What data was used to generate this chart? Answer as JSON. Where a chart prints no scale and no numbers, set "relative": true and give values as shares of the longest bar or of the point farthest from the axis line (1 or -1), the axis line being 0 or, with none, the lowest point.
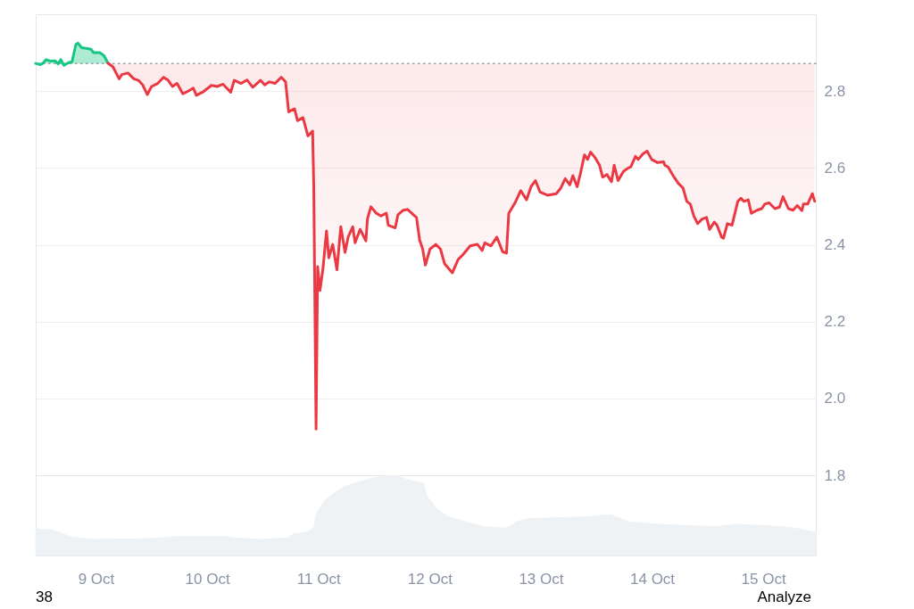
{
  "chart_data": [
    {
      "type": "area",
      "xlim": [
        "--10-08T11:00",
        "--10-15T11:20"
      ],
      "ylim": [
        1.8,
        3.0
      ],
      "yticks": [
        1.8,
        {
          "value": 2,
          "label": "2.0"
        },
        2.2,
        2.4,
        2.6,
        2.8
      ],
      "grid": "y",
      "tick_labels": "y",
      "ref_lines": [
        {
          "axis": "y",
          "value": 2.872,
          "line_style": "dotted",
          "color": "#9aa0aa"
        }
      ],
      "series": [
        {
          "color": "#16c784",
          "x": [
            "--10-08T11:00",
            "--10-08T12:00",
            "--10-08T12:30",
            "--10-08T13:15",
            "--10-08T14:15",
            "--10-08T15:10",
            "--10-08T15:50",
            "--10-08T16:25",
            "--10-08T17:05",
            "--10-08T18:05",
            "--10-08T18:50",
            "--10-08T19:40",
            "--10-08T20:05",
            "--10-08T20:55",
            "--10-08T21:55",
            "--10-08T22:55",
            "--10-08T23:30",
            "--10-09T00:50",
            "--10-09T01:45",
            "--10-09T02:35"
          ],
          "values": [
            2.872,
            2.869,
            2.872,
            2.882,
            2.878,
            2.879,
            2.871,
            2.882,
            2.867,
            2.874,
            2.876,
            2.921,
            2.925,
            2.913,
            2.911,
            2.909,
            2.9,
            2.9,
            2.892,
            2.873
          ]
        },
        {
          "type": "line",
          "color": "#ea3943",
          "x": [
            "--10-09T02:35",
            "--10-09T03:40",
            "--10-09T05:00",
            "--10-09T05:35",
            "--10-09T06:55",
            "--10-09T08:10",
            "--10-09T09:10",
            "--10-09T10:05",
            "--10-09T11:05",
            "--10-09T12:00",
            "--10-09T13:20",
            "--10-09T14:35",
            "--10-09T15:35",
            "--10-09T16:30",
            "--10-09T17:30",
            "--10-09T18:45",
            "--10-09T20:05",
            "--10-09T21:00",
            "--10-09T21:40",
            "--10-09T23:00",
            "--10-10T00:55",
            "--10-10T02:10",
            "--10-10T03:25",
            "--10-10T05:05",
            "--10-10T05:50",
            "--10-10T07:20",
            "--10-10T08:35",
            "--10-10T09:50",
            "--10-10T11:30",
            "--10-10T12:25",
            "--10-10T13:25",
            "--10-10T14:40",
            "--10-10T16:00",
            "--10-10T16:55",
            "--10-10T17:35",
            "--10-10T18:50",
            "--10-10T19:30",
            "--10-10T20:40",
            "--10-10T21:45",
            "--10-10T22:45",
            "--10-10T23:00",
            "--10-10T23:30",
            "--10-10T23:50",
            "--10-11T00:20",
            "--10-11T01:00",
            "--10-11T01:45",
            "--10-11T02:15",
            "--10-11T03:05",
            "--10-11T04:00",
            "--10-11T04:50",
            "--10-11T05:45",
            "--10-11T06:25",
            "--10-11T07:25",
            "--10-11T07:55",
            "--10-11T09:00",
            "--10-11T10:15",
            "--10-11T10:35",
            "--10-11T11:20",
            "--10-11T12:30",
            "--10-11T13:30",
            "--10-11T14:40",
            "--10-11T15:05",
            "--10-11T16:35",
            "--10-11T17:10",
            "--10-11T18:20",
            "--10-11T19:15",
            "--10-11T20:30",
            "--10-11T21:10",
            "--10-11T21:50",
            "--10-11T22:30",
            "--10-11T23:05",
            "--10-12T00:05",
            "--10-12T01:20",
            "--10-12T02:20",
            "--10-12T03:15",
            "--10-12T04:55",
            "--10-12T06:10",
            "--10-12T07:10",
            "--10-12T08:45",
            "--10-12T10:20",
            "--10-12T11:20",
            "--10-12T11:55",
            "--10-12T13:15",
            "--10-12T14:30",
            "--10-12T15:45",
            "--10-12T16:35",
            "--10-12T17:05",
            "--10-12T18:25",
            "--10-12T19:40",
            "--10-12T20:55",
            "--10-12T21:55",
            "--10-12T22:50",
            "--10-12T23:50",
            "--10-13T01:25",
            "--10-13T03:20",
            "--10-13T04:20",
            "--10-13T05:15",
            "--10-13T06:15",
            "--10-13T06:55",
            "--10-13T07:50",
            "--10-13T08:30",
            "--10-13T09:25",
            "--10-13T10:05",
            "--10-13T10:45",
            "--10-13T11:45",
            "--10-13T12:40",
            "--10-13T13:20",
            "--10-13T14:15",
            "--10-13T15:15",
            "--10-13T15:50",
            "--10-13T16:40",
            "--10-13T17:50",
            "--10-13T18:45",
            "--10-13T19:25",
            "--10-13T20:25",
            "--10-13T21:00",
            "--10-13T22:00",
            "--10-13T22:55",
            "--10-13T23:55",
            "--10-14T01:10",
            "--10-14T02:30",
            "--10-14T02:45",
            "--10-14T03:25",
            "--10-14T04:45",
            "--10-14T05:40",
            "--10-14T06:40",
            "--10-14T07:30",
            "--10-14T08:15",
            "--10-14T09:00",
            "--10-14T09:50",
            "--10-14T10:50",
            "--10-14T11:45",
            "--10-14T12:25",
            "--10-14T13:25",
            "--10-14T14:00",
            "--10-14T15:00",
            "--10-14T15:25",
            "--10-14T16:15",
            "--10-14T17:15",
            "--10-14T18:30",
            "--10-14T19:10",
            "--10-14T19:50",
            "--10-14T20:45",
            "--10-14T21:25",
            "--10-14T22:40",
            "--10-14T23:40",
            "--10-15T00:20",
            "--10-15T01:15",
            "--10-15T02:30",
            "--10-15T03:30",
            "--10-15T04:15",
            "--10-15T05:25",
            "--10-15T06:25",
            "--10-15T07:20",
            "--10-15T08:20",
            "--10-15T08:40",
            "--10-15T09:35",
            "--10-15T10:35",
            "--10-15T11:05"
          ],
          "values": [
            2.873,
            2.863,
            2.832,
            2.843,
            2.847,
            2.832,
            2.828,
            2.816,
            2.791,
            2.812,
            2.82,
            2.836,
            2.828,
            2.812,
            2.82,
            2.793,
            2.801,
            2.808,
            2.789,
            2.797,
            2.815,
            2.812,
            2.818,
            2.797,
            2.828,
            2.82,
            2.829,
            2.81,
            2.828,
            2.816,
            2.824,
            2.82,
            2.836,
            2.824,
            2.746,
            2.754,
            2.723,
            2.731,
            2.683,
            2.696,
            2.552,
            1.92,
            2.343,
            2.281,
            2.339,
            2.436,
            2.366,
            2.401,
            2.335,
            2.447,
            2.38,
            2.42,
            2.447,
            2.405,
            2.44,
            2.41,
            2.467,
            2.499,
            2.482,
            2.475,
            2.482,
            2.451,
            2.444,
            2.478,
            2.49,
            2.492,
            2.478,
            2.471,
            2.413,
            2.389,
            2.347,
            2.389,
            2.401,
            2.389,
            2.35,
            2.327,
            2.362,
            2.374,
            2.397,
            2.401,
            2.385,
            2.405,
            2.397,
            2.42,
            2.382,
            2.378,
            2.482,
            2.509,
            2.541,
            2.517,
            2.552,
            2.567,
            2.537,
            2.529,
            2.533,
            2.548,
            2.572,
            2.556,
            2.58,
            2.551,
            2.583,
            2.634,
            2.622,
            2.641,
            2.626,
            2.607,
            2.576,
            2.583,
            2.564,
            2.607,
            2.567,
            2.591,
            2.599,
            2.603,
            2.63,
            2.622,
            2.636,
            2.644,
            2.622,
            2.614,
            2.616,
            2.607,
            2.603,
            2.576,
            2.56,
            2.548,
            2.513,
            2.506,
            2.475,
            2.455,
            2.467,
            2.471,
            2.44,
            2.459,
            2.451,
            2.42,
            2.417,
            2.455,
            2.451,
            2.513,
            2.521,
            2.513,
            2.517,
            2.482,
            2.49,
            2.494,
            2.506,
            2.509,
            2.494,
            2.498,
            2.525,
            2.494,
            2.49,
            2.502,
            2.489,
            2.506,
            2.506,
            2.533,
            2.513
          ],
          "lower": [
            2.873,
            2.863,
            2.832,
            2.843,
            2.847,
            2.832,
            2.828,
            2.816,
            2.791,
            2.812,
            2.82,
            2.836,
            2.828,
            2.812,
            2.82,
            2.793,
            2.801,
            2.808,
            2.789,
            2.797,
            2.815,
            2.812,
            2.818,
            2.797,
            2.828,
            2.82,
            2.829,
            2.81,
            2.828,
            2.816,
            2.824,
            2.82,
            2.836,
            2.824,
            2.746,
            2.754,
            2.723,
            2.731,
            2.683,
            2.696,
            2.552,
            1.92,
            2.343,
            2.281,
            2.339,
            2.436,
            2.366,
            2.401,
            2.335,
            2.447,
            2.38,
            2.42,
            2.447,
            2.405,
            2.44,
            2.41,
            2.467,
            2.499,
            2.482,
            2.475,
            2.482,
            2.451,
            2.444,
            2.478,
            2.49,
            2.492,
            2.478,
            2.471,
            2.413,
            2.389,
            2.347,
            2.389,
            2.401,
            2.389,
            2.35,
            2.327,
            2.362,
            2.374,
            2.397,
            2.401,
            2.385,
            2.405,
            2.397,
            2.42,
            2.382,
            2.378,
            2.482,
            2.509,
            2.541,
            2.517,
            2.552,
            2.567,
            2.537,
            2.529,
            2.533,
            2.548,
            2.572,
            2.556,
            2.58,
            2.551,
            2.583,
            2.634,
            2.622,
            2.641,
            2.626,
            2.607,
            2.576,
            2.583,
            2.564,
            2.607,
            2.567,
            2.591,
            2.599,
            2.603,
            2.63,
            2.622,
            2.636,
            2.644,
            2.622,
            2.614,
            2.616,
            2.607,
            2.603,
            2.576,
            2.56,
            2.548,
            2.513,
            2.506,
            2.475,
            2.455,
            2.467,
            2.471,
            2.44,
            2.459,
            2.451,
            2.42,
            2.417,
            2.455,
            2.451,
            2.513,
            2.521,
            2.513,
            2.517,
            2.482,
            2.49,
            2.494,
            2.506,
            2.509,
            2.494,
            2.498,
            2.525,
            2.494,
            2.49,
            2.502,
            2.489,
            2.506,
            2.506,
            2.533,
            2.513
          ],
          "upper": [
            2.872,
            2.872,
            2.872,
            2.872,
            2.872,
            2.872,
            2.872,
            2.872,
            2.872,
            2.872,
            2.872,
            2.872,
            2.872,
            2.872,
            2.872,
            2.872,
            2.872,
            2.872,
            2.872,
            2.872,
            2.872,
            2.872,
            2.872,
            2.872,
            2.872,
            2.872,
            2.872,
            2.872,
            2.872,
            2.872,
            2.872,
            2.872,
            2.872,
            2.872,
            2.872,
            2.872,
            2.872,
            2.872,
            2.872,
            2.872,
            2.872,
            2.872,
            2.872,
            2.872,
            2.872,
            2.872,
            2.872,
            2.872,
            2.872,
            2.872,
            2.872,
            2.872,
            2.872,
            2.872,
            2.872,
            2.872,
            2.872,
            2.872,
            2.872,
            2.872,
            2.872,
            2.872,
            2.872,
            2.872,
            2.872,
            2.872,
            2.872,
            2.872,
            2.872,
            2.872,
            2.872,
            2.872,
            2.872,
            2.872,
            2.872,
            2.872,
            2.872,
            2.872,
            2.872,
            2.872,
            2.872,
            2.872,
            2.872,
            2.872,
            2.872,
            2.872,
            2.872,
            2.872,
            2.872,
            2.872,
            2.872,
            2.872,
            2.872,
            2.872,
            2.872,
            2.872,
            2.872,
            2.872,
            2.872,
            2.872,
            2.872,
            2.872,
            2.872,
            2.872,
            2.872,
            2.872,
            2.872,
            2.872,
            2.872,
            2.872,
            2.872,
            2.872,
            2.872,
            2.872,
            2.872,
            2.872,
            2.872,
            2.872,
            2.872,
            2.872,
            2.872,
            2.872,
            2.872,
            2.872,
            2.872,
            2.872,
            2.872,
            2.872,
            2.872,
            2.872,
            2.872,
            2.872,
            2.872,
            2.872,
            2.872,
            2.872,
            2.872,
            2.872,
            2.872,
            2.872,
            2.872,
            2.872,
            2.872,
            2.872,
            2.872,
            2.872,
            2.872,
            2.872,
            2.872,
            2.872,
            2.872,
            2.872,
            2.872,
            2.872,
            2.872,
            2.872,
            2.872,
            2.872,
            2.872
          ]
        }
      ]
    },
    {
      "type": "area",
      "relative": true,
      "xlim": [
        "--10-08T11:00",
        "--10-15T11:20"
      ],
      "xticks": [
        {
          "value": "--10-09",
          "label": "9 Oct"
        },
        {
          "value": "--10-10",
          "label": "10 Oct"
        },
        {
          "value": "--10-11",
          "label": "11 Oct"
        },
        {
          "value": "--10-12",
          "label": "12 Oct"
        },
        {
          "value": "--10-13",
          "label": "13 Oct"
        },
        {
          "value": "--10-14",
          "label": "14 Oct"
        },
        {
          "value": "--10-15",
          "label": "15 Oct"
        }
      ],
      "color": "#eff2f5",
      "x": [
        "--10-08T11:00",
        "--10-08T14:00",
        "--10-08T16:15",
        "--10-08T18:30",
        "--10-08T23:25",
        "--10-09T12:10",
        "--10-09T18:15",
        "--10-10T04:10",
        "--10-10T05:20",
        "--10-10T11:55",
        "--10-10T17:30",
        "--10-10T18:35",
        "--10-10T21:20",
        "--10-10T23:00",
        "--10-10T23:30",
        "--10-11T01:15",
        "--10-11T03:25",
        "--10-11T05:35",
        "--10-11T08:55",
        "--10-11T12:15",
        "--10-11T15:35",
        "--10-11T17:15",
        "--10-11T18:55",
        "--10-11T22:45",
        "--10-11T23:20",
        "--10-12T01:30",
        "--10-12T03:45",
        "--10-12T07:05",
        "--10-12T11:30",
        "--10-12T16:25",
        "--10-12T19:15",
        "--10-12T21:25",
        "--10-13T09:35",
        "--10-13T15:05",
        "--10-13T19:00",
        "--10-14T01:05",
        "--10-14T08:50",
        "--10-14T14:20",
        "--10-14T17:40",
        "--10-15T01:25",
        "--10-15T06:55",
        "--10-15T11:20"
      ],
      "values": [
        0.33,
        0.32,
        0.29,
        0.23,
        0.2,
        0.21,
        0.24,
        0.24,
        0.22,
        0.2,
        0.22,
        0.27,
        0.29,
        0.34,
        0.51,
        0.68,
        0.78,
        0.86,
        0.92,
        0.97,
        1,
        0.99,
        0.95,
        0.9,
        0.75,
        0.58,
        0.49,
        0.43,
        0.36,
        0.34,
        0.43,
        0.46,
        0.48,
        0.51,
        0.42,
        0.39,
        0.37,
        0.36,
        0.39,
        0.37,
        0.34,
        0.29
      ],
      "annotations": [
        "38",
        "Analyze"
      ]
    }
  ]
}
